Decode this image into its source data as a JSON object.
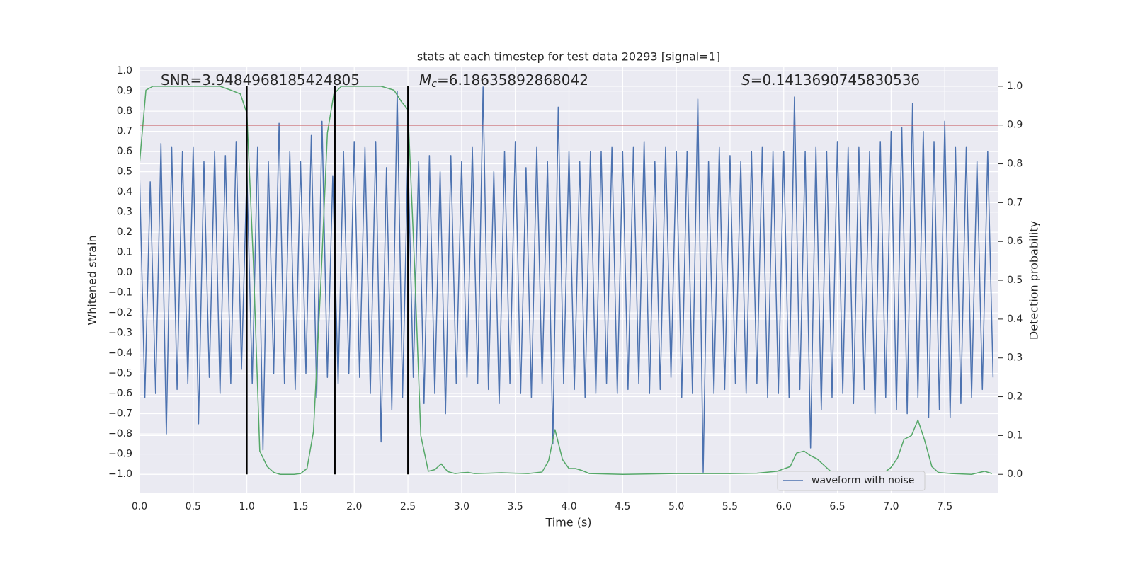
{
  "chart_data": {
    "type": "line",
    "title": "stats at each timestep for test data 20293 [signal=1]",
    "xlabel": "Time (s)",
    "ylabel": "Whitened strain",
    "y2label": "Detection probability",
    "annotations": [
      {
        "text": "SNR=3.9484968185424805"
      },
      {
        "symbol": "M",
        "subscript": "c",
        "text": "=6.18635892868042"
      },
      {
        "symbol": "S",
        "text": "=0.1413690745830536"
      }
    ],
    "xlim": [
      0,
      8
    ],
    "ylim": [
      -1.091,
      1.018
    ],
    "y2lim": [
      -0.047,
      1.049
    ],
    "xticks": [
      {
        "value": 0,
        "label": "0.0"
      },
      0.5,
      {
        "value": 1,
        "label": "1.0"
      },
      1.5,
      {
        "value": 2,
        "label": "2.0"
      },
      2.5,
      {
        "value": 3,
        "label": "3.0"
      },
      3.5,
      {
        "value": 4,
        "label": "4.0"
      },
      4.5,
      {
        "value": 5,
        "label": "5.0"
      },
      5.5,
      {
        "value": 6,
        "label": "6.0"
      },
      6.5,
      {
        "value": 7,
        "label": "7.0"
      },
      7.5
    ],
    "yticks": [
      {
        "value": 1,
        "label": "1.0"
      },
      0.9,
      0.8,
      0.7,
      0.6,
      0.5,
      0.4,
      0.3,
      0.2,
      0.1,
      {
        "value": 0,
        "label": "0.0"
      },
      {
        "value": -0.1,
        "label": "−0.1"
      },
      {
        "value": -0.2,
        "label": "−0.2"
      },
      {
        "value": -0.3,
        "label": "−0.3"
      },
      {
        "value": -0.4,
        "label": "−0.4"
      },
      {
        "value": -0.5,
        "label": "−0.5"
      },
      {
        "value": -0.6,
        "label": "−0.6"
      },
      {
        "value": -0.7,
        "label": "−0.7"
      },
      {
        "value": -0.8,
        "label": "−0.8"
      },
      {
        "value": -0.9,
        "label": "−0.9"
      },
      {
        "value": -1,
        "label": "−1.0"
      }
    ],
    "y2ticks": [
      {
        "value": 0,
        "label": "0.0"
      },
      0.1,
      0.2,
      0.3,
      0.4,
      0.5,
      0.6,
      0.7,
      0.8,
      0.9,
      {
        "value": 1,
        "label": "1.0"
      }
    ],
    "grid": true,
    "legend": "lower right",
    "series": [
      {
        "name": "waveform with noise",
        "color": "#4c72b0",
        "x": [
          0,
          0.05,
          0.1,
          0.15,
          0.2,
          0.25,
          0.3,
          0.35,
          0.4,
          0.45,
          0.5,
          0.55,
          0.6,
          0.65,
          0.7,
          0.75,
          0.8,
          0.85,
          0.9,
          0.95,
          1,
          1.05,
          1.1,
          1.15,
          1.2,
          1.25,
          1.3,
          1.35,
          1.4,
          1.45,
          1.5,
          1.55,
          1.6,
          1.65,
          1.7,
          1.75,
          1.8,
          1.85,
          1.9,
          1.95,
          2,
          2.05,
          2.1,
          2.15,
          2.2,
          2.25,
          2.3,
          2.35,
          2.4,
          2.45,
          2.5,
          2.55,
          2.6,
          2.65,
          2.7,
          2.75,
          2.8,
          2.85,
          2.9,
          2.95,
          3,
          3.05,
          3.1,
          3.15,
          3.2,
          3.25,
          3.3,
          3.35,
          3.4,
          3.45,
          3.5,
          3.55,
          3.6,
          3.65,
          3.7,
          3.75,
          3.8,
          3.85,
          3.9,
          3.95,
          4,
          4.05,
          4.1,
          4.15,
          4.2,
          4.25,
          4.3,
          4.35,
          4.4,
          4.45,
          4.5,
          4.55,
          4.6,
          4.65,
          4.7,
          4.75,
          4.8,
          4.85,
          4.9,
          4.95,
          5,
          5.05,
          5.1,
          5.15,
          5.2,
          5.25,
          5.3,
          5.35,
          5.4,
          5.45,
          5.5,
          5.55,
          5.6,
          5.65,
          5.7,
          5.75,
          5.8,
          5.85,
          5.9,
          5.95,
          6,
          6.05,
          6.1,
          6.15,
          6.2,
          6.25,
          6.3,
          6.35,
          6.4,
          6.45,
          6.5,
          6.55,
          6.6,
          6.65,
          6.7,
          6.75,
          6.8,
          6.85,
          6.9,
          6.95,
          7,
          7.05,
          7.1,
          7.15,
          7.2,
          7.25,
          7.3,
          7.35,
          7.4,
          7.45,
          7.5,
          7.55,
          7.6,
          7.65,
          7.7,
          7.75,
          7.8,
          7.85,
          7.9,
          7.95
        ],
        "values": [
          0.5,
          -0.62,
          0.45,
          -0.6,
          0.64,
          -0.8,
          0.62,
          -0.58,
          0.6,
          -0.55,
          0.62,
          -0.75,
          0.55,
          -0.52,
          0.6,
          -0.6,
          0.58,
          -0.55,
          0.65,
          -0.48,
          0.5,
          -0.55,
          0.62,
          -0.88,
          0.55,
          -0.5,
          0.74,
          -0.55,
          0.6,
          -0.58,
          0.55,
          -0.5,
          0.68,
          -0.62,
          0.75,
          -0.52,
          0.48,
          -0.55,
          0.6,
          -0.5,
          0.65,
          -0.52,
          0.62,
          -0.6,
          0.65,
          -0.84,
          0.52,
          -0.68,
          0.9,
          -0.62,
          0.6,
          -0.52,
          0.55,
          -0.65,
          0.58,
          -0.6,
          0.5,
          -0.7,
          0.58,
          -0.55,
          0.55,
          -0.52,
          0.62,
          -0.55,
          0.92,
          -0.58,
          0.5,
          -0.65,
          0.6,
          -0.55,
          0.65,
          -0.6,
          0.52,
          -0.62,
          0.62,
          -0.55,
          0.55,
          -0.85,
          0.82,
          -0.55,
          0.6,
          -0.58,
          0.55,
          -0.62,
          0.6,
          -0.6,
          0.6,
          -0.55,
          0.62,
          -0.6,
          0.6,
          -0.58,
          0.62,
          -0.55,
          0.65,
          -0.6,
          0.55,
          -0.58,
          0.62,
          -0.52,
          0.6,
          -0.62,
          0.6,
          -0.6,
          0.86,
          -0.99,
          0.55,
          -0.6,
          0.62,
          -0.58,
          0.58,
          -0.55,
          0.55,
          -0.6,
          0.6,
          -0.55,
          0.62,
          -0.62,
          0.6,
          -0.6,
          0.6,
          -0.62,
          0.87,
          -0.58,
          0.6,
          -0.87,
          0.62,
          -0.68,
          0.6,
          -0.62,
          0.65,
          -0.6,
          0.62,
          -0.65,
          0.62,
          -0.58,
          0.6,
          -0.7,
          0.65,
          -0.62,
          0.7,
          -0.68,
          0.72,
          -0.7,
          0.84,
          -0.62,
          0.7,
          -0.72,
          0.65,
          -0.68,
          0.75,
          -0.72,
          0.62,
          -0.65,
          0.62,
          -0.62,
          0.55,
          -0.58,
          0.6,
          -0.52
        ]
      },
      {
        "color": "#55a868",
        "axis": "y2",
        "x": [
          0,
          0.06,
          0.125,
          0.25,
          0.5,
          0.75,
          0.85,
          0.94,
          1,
          1.06,
          1.12,
          1.19,
          1.25,
          1.31,
          1.44,
          1.5,
          1.56,
          1.62,
          1.69,
          1.75,
          1.81,
          1.88,
          2,
          2.25,
          2.37,
          2.44,
          2.5,
          2.56,
          2.62,
          2.69,
          2.75,
          2.81,
          2.87,
          2.94,
          3,
          3.06,
          3.12,
          3.25,
          3.37,
          3.5,
          3.62,
          3.75,
          3.81,
          3.87,
          3.94,
          4,
          4.06,
          4.12,
          4.19,
          4.5,
          5,
          5.5,
          5.75,
          5.94,
          6.06,
          6.12,
          6.19,
          6.25,
          6.31,
          6.44,
          6.5,
          6.75,
          6.94,
          7,
          7.06,
          7.12,
          7.19,
          7.25,
          7.31,
          7.38,
          7.44,
          7.56,
          7.75,
          7.87,
          7.94
        ],
        "values": [
          0.8,
          0.99,
          1,
          1,
          1,
          1,
          0.99,
          0.98,
          0.93,
          0.55,
          0.06,
          0.02,
          0.005,
          0,
          0,
          0.002,
          0.015,
          0.11,
          0.5,
          0.88,
          0.98,
          1,
          1,
          1,
          0.99,
          0.96,
          0.94,
          0.55,
          0.1,
          0.008,
          0.012,
          0.027,
          0.007,
          0.002,
          0.004,
          0.005,
          0.002,
          0.003,
          0.004,
          0.003,
          0.002,
          0.006,
          0.035,
          0.115,
          0.038,
          0.015,
          0.015,
          0.01,
          0.002,
          0,
          0.002,
          0.002,
          0.003,
          0.008,
          0.02,
          0.055,
          0.06,
          0.048,
          0.04,
          0.007,
          0.002,
          0.003,
          0.005,
          0.018,
          0.042,
          0.09,
          0.1,
          0.14,
          0.09,
          0.02,
          0.005,
          0.002,
          0,
          0.008,
          0.002
        ]
      }
    ],
    "threshold": {
      "value": 0.9,
      "axis": "y2",
      "color": "#c44e52"
    },
    "vlines": {
      "x": [
        1,
        1.82,
        2.5
      ],
      "ymin": 0,
      "ymax": 1,
      "axis": "y2",
      "color": "#000000"
    }
  }
}
